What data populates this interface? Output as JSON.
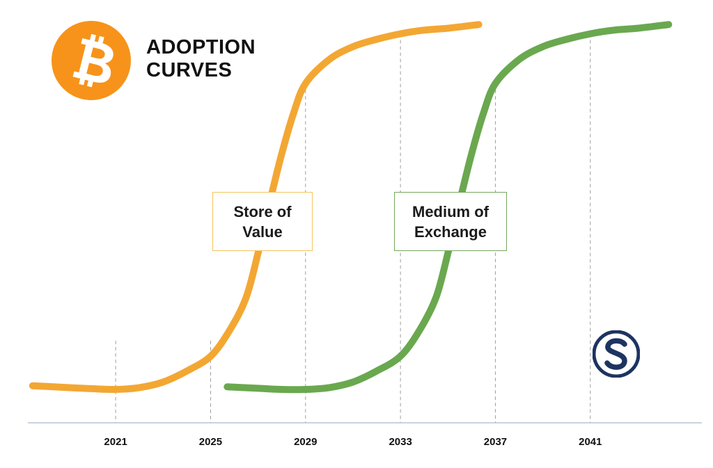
{
  "title_lines": [
    "ADOPTION",
    "CURVES"
  ],
  "logos": {
    "bitcoin": "bitcoin-icon",
    "publisher": "s-monogram-icon"
  },
  "colors": {
    "bitcoin_orange": "#f7931a",
    "store_of_value": "#f3a733",
    "medium_of_exchange": "#6aa84f",
    "axis": "#a9b8cc",
    "gridline": "#9e9e9e",
    "publisher_navy": "#1d3461"
  },
  "chart_data": {
    "type": "line",
    "title": "ADOPTION CURVES",
    "xlabel": "",
    "ylabel": "",
    "x_ticks": [
      2021,
      2025,
      2029,
      2033,
      2037,
      2041
    ],
    "xlim": [
      2017.3,
      2045.7
    ],
    "ylim": [
      0,
      100
    ],
    "grid": "vertical dashed lines at tick years",
    "legend": "none",
    "y_axis_shown": false,
    "series": [
      {
        "name": "Store of Value",
        "color": "#f3a733",
        "x": [
          2017.5,
          2019,
          2020,
          2021,
          2022,
          2023,
          2024,
          2025,
          2025.8,
          2026.5,
          2027,
          2027.5,
          2028,
          2028.5,
          2029,
          2030,
          2031,
          2032,
          2033,
          2034,
          2035,
          2036.3
        ],
        "y": [
          1,
          0.5,
          0.2,
          0,
          0.5,
          2,
          5,
          9,
          16,
          25,
          37,
          51,
          64,
          75,
          83,
          89.5,
          93,
          95,
          96.5,
          97.5,
          98,
          99
        ]
      },
      {
        "name": "Medium of Exchange",
        "color": "#6aa84f",
        "x": [
          2025.7,
          2027,
          2028,
          2029,
          2030,
          2031,
          2032,
          2033,
          2033.8,
          2034.5,
          2035,
          2035.5,
          2036,
          2036.5,
          2037,
          2038,
          2039,
          2040,
          2041,
          2042,
          2043,
          2044.3
        ],
        "y": [
          0.7,
          0.3,
          0,
          0,
          0.5,
          2,
          5,
          9,
          16,
          25,
          37,
          51,
          64,
          75,
          83,
          89.5,
          93,
          95,
          96.5,
          97.5,
          98,
          99
        ]
      }
    ],
    "annotations": [
      {
        "label_lines": [
          "Store of",
          "Value"
        ],
        "series": "Store of Value"
      },
      {
        "label_lines": [
          "Medium of",
          "Exchange"
        ],
        "series": "Medium of Exchange"
      }
    ]
  }
}
